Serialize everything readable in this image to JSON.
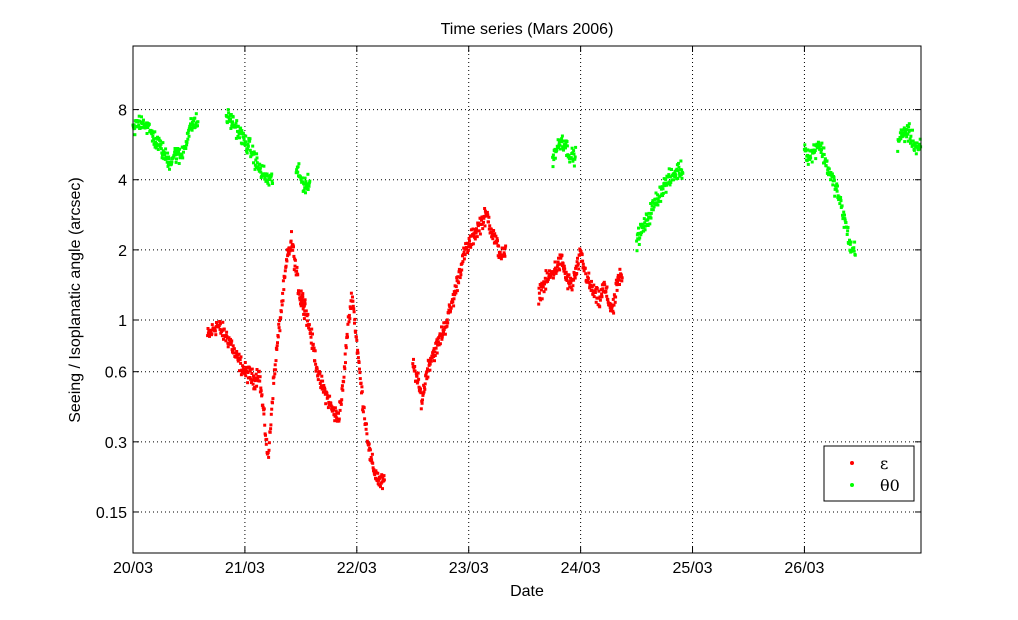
{
  "chart_data": {
    "type": "scatter",
    "title": "Time series (Mars 2006)",
    "xlabel": "Date",
    "ylabel": "Seeing / Isoplanatic angle (arcsec)",
    "y_scale": "log",
    "ylim": [
      0.1,
      15
    ],
    "xlim": [
      "2006-03-20",
      "2006-03-27T01:00"
    ],
    "xticks": [
      "20/03",
      "21/03",
      "22/03",
      "23/03",
      "24/03",
      "25/03",
      "26/03"
    ],
    "yticks": [
      "0.15",
      "0.3",
      "0.6",
      "1",
      "2",
      "4",
      "8"
    ],
    "grid": true,
    "legend_position": "bottom-right",
    "colors": {
      "epsilon": "#ff0000",
      "theta0": "#00ff00"
    },
    "series": [
      {
        "name": "ε",
        "color": "#ff0000",
        "segments": [
          {
            "start": "2006-03-20T16:00",
            "values": [
              0.85,
              0.9,
              0.95,
              0.9,
              0.85,
              0.8,
              0.7,
              0.65,
              0.6,
              0.58,
              0.55,
              0.6,
              0.4,
              0.25,
              0.5,
              0.8,
              1.2,
              1.8,
              2.2,
              1.6,
              1.2
            ]
          },
          {
            "start": "2006-03-21T12:00",
            "values": [
              1.3,
              1.1,
              0.9,
              0.7,
              0.55,
              0.5,
              0.45,
              0.4,
              0.38,
              0.5,
              0.9,
              1.3,
              0.8,
              0.5,
              0.35,
              0.25,
              0.22,
              0.2
            ]
          },
          {
            "start": "2006-03-22T12:00",
            "values": [
              0.65,
              0.55,
              0.45,
              0.6,
              0.7,
              0.75,
              0.85,
              0.95,
              1.1,
              1.3,
              1.6,
              1.9,
              2.1,
              2.3,
              2.5,
              2.7,
              2.8,
              2.4,
              2.1,
              1.9
            ]
          },
          {
            "start": "2006-03-23T15:00",
            "values": [
              1.3,
              1.4,
              1.5,
              1.6,
              1.7,
              1.8,
              1.5,
              1.4,
              1.6,
              1.9,
              1.6,
              1.4,
              1.3,
              1.2,
              1.4,
              1.2,
              1.1,
              1.5
            ]
          }
        ]
      },
      {
        "name": "θ0",
        "color": "#00ff00",
        "segments": [
          {
            "start": "2006-03-20T00:00",
            "values": [
              6.5,
              7.0,
              7.2,
              6.8,
              6.3,
              5.8,
              5.5,
              5.0,
              4.8,
              5.2,
              5.0,
              5.5,
              6.5,
              7.0
            ]
          },
          {
            "start": "2006-03-20T20:00",
            "values": [
              7.5,
              7.2,
              6.8,
              6.3,
              5.8,
              5.5,
              5.0,
              4.5,
              4.2,
              4.0
            ]
          },
          {
            "start": "2006-03-21T11:00",
            "values": [
              4.5,
              4.0,
              3.8
            ]
          },
          {
            "start": "2006-03-23T18:00",
            "values": [
              5.0,
              5.5,
              6.0,
              5.5,
              5.0
            ]
          },
          {
            "start": "2006-03-24T12:00",
            "values": [
              2.2,
              2.4,
              2.6,
              2.9,
              3.2,
              3.5,
              3.8,
              4.0,
              4.2,
              4.4
            ]
          },
          {
            "start": "2006-03-26T00:00",
            "values": [
              5.5,
              5.0,
              5.3,
              5.8,
              5.2,
              4.5,
              4.0,
              3.6,
              3.0,
              2.5,
              2.0
            ]
          },
          {
            "start": "2006-03-26T20:00",
            "values": [
              5.8,
              6.2,
              6.5,
              6.0,
              5.5
            ]
          }
        ]
      }
    ]
  }
}
